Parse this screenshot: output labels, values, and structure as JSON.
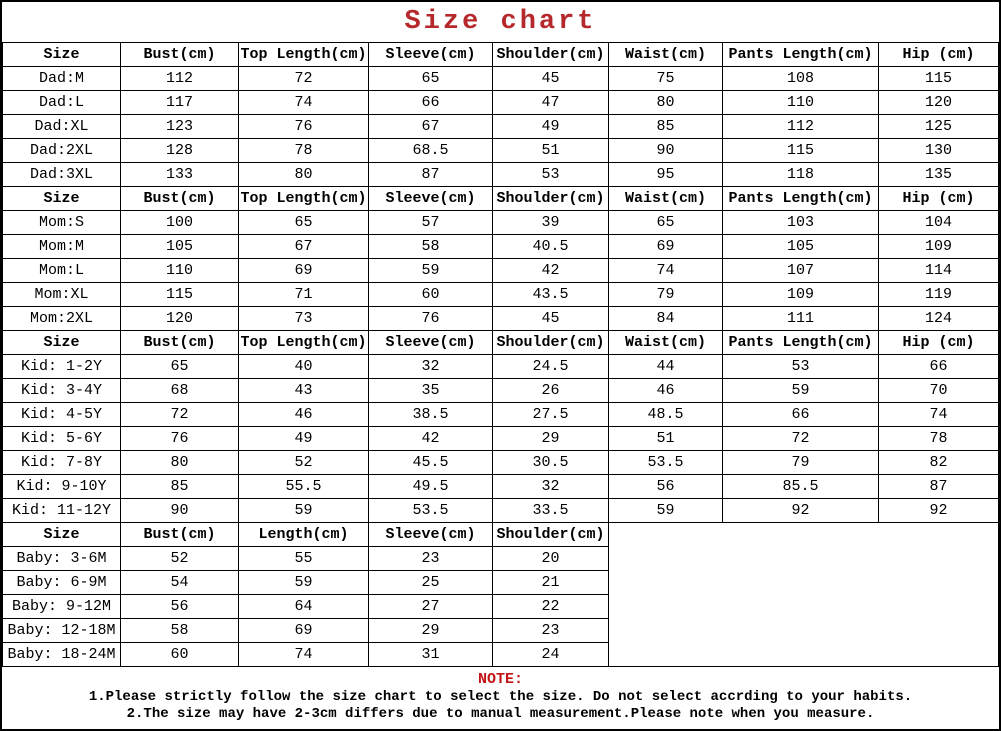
{
  "title": "Size chart",
  "colors": {
    "title_red": "#b5292c",
    "note_red": "#c21414",
    "border": "#000000",
    "background": "#ffffff"
  },
  "sections": [
    {
      "group": "Dad",
      "headers": [
        "Size",
        "Bust(cm)",
        "Top Length(cm)",
        "Sleeve(cm)",
        "Shoulder(cm)",
        "Waist(cm)",
        "Pants Length(cm)",
        "Hip (cm)"
      ],
      "rows": [
        [
          "Dad:M",
          "112",
          "72",
          "65",
          "45",
          "75",
          "108",
          "115"
        ],
        [
          "Dad:L",
          "117",
          "74",
          "66",
          "47",
          "80",
          "110",
          "120"
        ],
        [
          "Dad:XL",
          "123",
          "76",
          "67",
          "49",
          "85",
          "112",
          "125"
        ],
        [
          "Dad:2XL",
          "128",
          "78",
          "68.5",
          "51",
          "90",
          "115",
          "130"
        ],
        [
          "Dad:3XL",
          "133",
          "80",
          "87",
          "53",
          "95",
          "118",
          "135"
        ]
      ]
    },
    {
      "group": "Mom",
      "headers": [
        "Size",
        "Bust(cm)",
        "Top Length(cm)",
        "Sleeve(cm)",
        "Shoulder(cm)",
        "Waist(cm)",
        "Pants Length(cm)",
        "Hip (cm)"
      ],
      "rows": [
        [
          "Mom:S",
          "100",
          "65",
          "57",
          "39",
          "65",
          "103",
          "104"
        ],
        [
          "Mom:M",
          "105",
          "67",
          "58",
          "40.5",
          "69",
          "105",
          "109"
        ],
        [
          "Mom:L",
          "110",
          "69",
          "59",
          "42",
          "74",
          "107",
          "114"
        ],
        [
          "Mom:XL",
          "115",
          "71",
          "60",
          "43.5",
          "79",
          "109",
          "119"
        ],
        [
          "Mom:2XL",
          "120",
          "73",
          "76",
          "45",
          "84",
          "111",
          "124"
        ]
      ]
    },
    {
      "group": "Kid",
      "headers": [
        "Size",
        "Bust(cm)",
        "Top Length(cm)",
        "Sleeve(cm)",
        "Shoulder(cm)",
        "Waist(cm)",
        "Pants Length(cm)",
        "Hip (cm)"
      ],
      "rows": [
        [
          "Kid: 1-2Y",
          "65",
          "40",
          "32",
          "24.5",
          "44",
          "53",
          "66"
        ],
        [
          "Kid: 3-4Y",
          "68",
          "43",
          "35",
          "26",
          "46",
          "59",
          "70"
        ],
        [
          "Kid: 4-5Y",
          "72",
          "46",
          "38.5",
          "27.5",
          "48.5",
          "66",
          "74"
        ],
        [
          "Kid: 5-6Y",
          "76",
          "49",
          "42",
          "29",
          "51",
          "72",
          "78"
        ],
        [
          "Kid: 7-8Y",
          "80",
          "52",
          "45.5",
          "30.5",
          "53.5",
          "79",
          "82"
        ],
        [
          "Kid: 9-10Y",
          "85",
          "55.5",
          "49.5",
          "32",
          "56",
          "85.5",
          "87"
        ],
        [
          "Kid: 11-12Y",
          "90",
          "59",
          "53.5",
          "33.5",
          "59",
          "92",
          "92"
        ]
      ]
    },
    {
      "group": "Baby",
      "headers": [
        "Size",
        "Bust(cm)",
        "Length(cm)",
        "Sleeve(cm)",
        "Shoulder(cm)"
      ],
      "rows": [
        [
          "Baby: 3-6M",
          "52",
          "55",
          "23",
          "20"
        ],
        [
          "Baby: 6-9M",
          "54",
          "59",
          "25",
          "21"
        ],
        [
          "Baby: 9-12M",
          "56",
          "64",
          "27",
          "22"
        ],
        [
          "Baby: 12-18M",
          "58",
          "69",
          "29",
          "23"
        ],
        [
          "Baby: 18-24M",
          "60",
          "74",
          "31",
          "24"
        ]
      ]
    }
  ],
  "note": {
    "label": "NOTE:",
    "lines": [
      "1.Please strictly follow the size chart to select the size. Do not select accrding to your habits.",
      "2.The size may have 2-3cm differs  due to manual measurement.Please note when you measure."
    ]
  }
}
